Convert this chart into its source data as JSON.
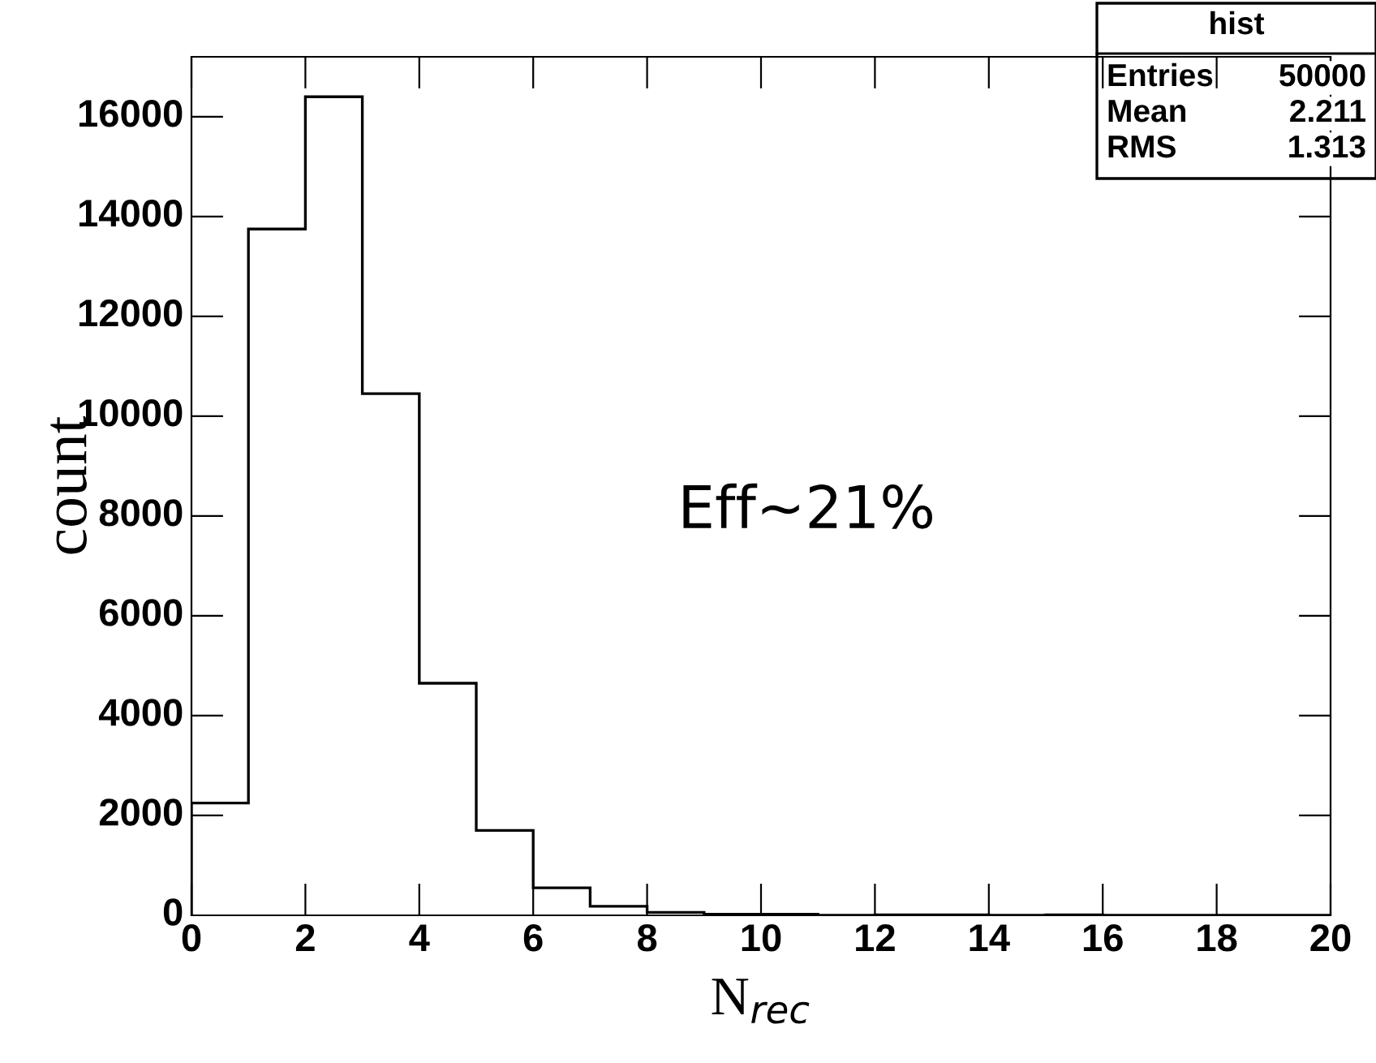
{
  "chart_data": {
    "type": "histogram",
    "xlabel": "N$_{rec}$",
    "ylabel": "count",
    "bins": [
      0,
      1,
      2,
      3,
      4,
      5,
      6,
      7,
      8,
      9,
      10,
      11,
      12,
      13,
      14,
      15,
      16,
      17,
      18,
      19,
      20
    ],
    "values": [
      2250,
      13750,
      16400,
      10450,
      4650,
      1700,
      550,
      180,
      60,
      20,
      20,
      0,
      10,
      10,
      0,
      10,
      0,
      0,
      0,
      0
    ],
    "color": "#000000",
    "xlim": [
      0,
      20
    ],
    "xticks": [
      0,
      2,
      4,
      6,
      8,
      10,
      12,
      14,
      16,
      18,
      20
    ],
    "ylim": [
      0,
      17200
    ],
    "yticks": [
      0,
      2000,
      4000,
      6000,
      8000,
      10000,
      12000,
      14000,
      16000
    ],
    "grid": false,
    "legend": false,
    "annotations": [
      "hist",
      "Entries",
      "50000",
      "Mean",
      "2.211",
      "RMS",
      "1.313",
      "Eff~21%"
    ]
  }
}
